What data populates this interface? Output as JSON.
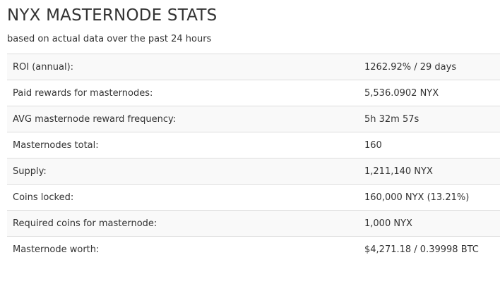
{
  "header": {
    "title": "NYX MASTERNODE STATS",
    "subtitle": "based on actual data over the past 24 hours"
  },
  "stats": [
    {
      "label": "ROI (annual):",
      "value": "1262.92% / 29 days"
    },
    {
      "label": "Paid rewards for masternodes:",
      "value": "5,536.0902 NYX"
    },
    {
      "label": "AVG masternode reward frequency:",
      "value": "5h 32m 57s"
    },
    {
      "label": "Masternodes total:",
      "value": "160"
    },
    {
      "label": "Supply:",
      "value": "1,211,140 NYX"
    },
    {
      "label": "Coins locked:",
      "value": "160,000 NYX (13.21%)"
    },
    {
      "label": "Required coins for masternode:",
      "value": "1,000 NYX"
    },
    {
      "label": "Masternode worth:",
      "value": "$4,271.18 / 0.39998 BTC"
    }
  ]
}
